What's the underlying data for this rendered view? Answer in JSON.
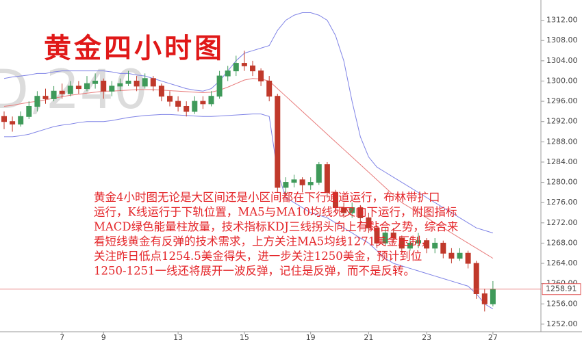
{
  "chart_data": {
    "type": "candlestick",
    "title": "黄金四小时图",
    "watermark": "D,240",
    "annotation": [
      "黄金4小时图无论是大区间还是小区间都在下行通道运行，布林带扩口",
      "运行，K线运行于下轨位置，MA5与MA10均线死叉向下运行，附图指标",
      "MACD绿色能量柱放量，技术指标KDJ三线拐头向上有黏合之势，综合来",
      "看短线黄金有反弹的技术需求，上方关注MA5均线1271美金压制，",
      "关注昨日低点1254.5美金得失，进一步关注1250美金，预计到位",
      "1250-1251一线还将展开一波反弹，记住是反弹，而不是反转。"
    ],
    "categories": [
      null,
      null,
      null,
      null,
      null,
      null,
      null,
      "7",
      null,
      null,
      null,
      null,
      "9",
      null,
      null,
      null,
      null,
      null,
      null,
      null,
      null,
      "13",
      null,
      null,
      null,
      null,
      null,
      null,
      null,
      "15",
      null,
      null,
      null,
      null,
      null,
      null,
      null,
      "19",
      null,
      null,
      null,
      null,
      null,
      null,
      "21",
      null,
      null,
      null,
      null,
      null,
      null,
      "23",
      null,
      null,
      null,
      null,
      null,
      null,
      null,
      "27"
    ],
    "open": [
      1293,
      1292,
      1291.5,
      1293,
      1295,
      1297,
      1296.5,
      1298,
      1297.5,
      1299,
      1298.5,
      1299.5,
      1300,
      1298,
      1299,
      1299.5,
      1300,
      1299,
      1300.5,
      1299,
      1297,
      1296,
      1295,
      1294,
      1296,
      1295.5,
      1297,
      1301,
      1302,
      1303.5,
      1303,
      1302,
      1300,
      1297,
      1279,
      1280,
      1280.5,
      1279.5,
      1280,
      1283.5,
      1278,
      1275,
      1274,
      1275,
      1273,
      1271,
      1268,
      1270,
      1269,
      1267,
      1268,
      1268.5,
      1267,
      1268,
      1266,
      1265,
      1266,
      1264,
      1258,
      1256
    ],
    "high": [
      1294,
      1293,
      1294,
      1296,
      1298,
      1298.5,
      1299,
      1299.5,
      1300,
      1300,
      1301,
      1301.5,
      1300.5,
      1300,
      1300.5,
      1302,
      1301,
      1301.5,
      1301,
      1299.5,
      1298,
      1297,
      1296,
      1297,
      1297,
      1298,
      1302,
      1303,
      1305,
      1306,
      1304,
      1302.5,
      1301,
      1297.5,
      1281,
      1281.5,
      1281,
      1281,
      1284,
      1284,
      1278.5,
      1276,
      1276,
      1275.5,
      1274,
      1271.5,
      1271,
      1271,
      1269.5,
      1269,
      1270,
      1269,
      1269,
      1268.5,
      1267,
      1267,
      1266.5,
      1264.5,
      1259,
      1260.5
    ],
    "low": [
      1290.5,
      1290,
      1291,
      1292.5,
      1294,
      1295.5,
      1296,
      1296.5,
      1297,
      1297.5,
      1298,
      1298.5,
      1296.5,
      1297,
      1298,
      1299,
      1298,
      1298.5,
      1298,
      1296,
      1295,
      1294,
      1293,
      1293.5,
      1294.5,
      1295,
      1296.5,
      1300,
      1301,
      1302,
      1301,
      1299,
      1296,
      1278,
      1277.5,
      1279,
      1278,
      1278.5,
      1279.5,
      1277,
      1274,
      1273,
      1273,
      1272,
      1270,
      1267,
      1267.5,
      1268,
      1266,
      1266.5,
      1267,
      1266,
      1266,
      1265,
      1264,
      1264.5,
      1263,
      1257,
      1254.5,
      1255.5
    ],
    "close": [
      1292,
      1291.5,
      1293,
      1295,
      1297,
      1296.5,
      1298,
      1297.5,
      1299,
      1298.5,
      1299.5,
      1300,
      1298,
      1299,
      1299.5,
      1300,
      1299,
      1300.5,
      1299,
      1297,
      1296,
      1295,
      1294,
      1296,
      1295.5,
      1297,
      1301,
      1302,
      1303.5,
      1303,
      1302,
      1300,
      1297,
      1279,
      1280,
      1280.5,
      1279.5,
      1280,
      1283.5,
      1278,
      1275,
      1274,
      1275,
      1273,
      1271,
      1268,
      1270,
      1269,
      1267,
      1268,
      1268.5,
      1267,
      1268,
      1266,
      1265,
      1266,
      1264,
      1258,
      1256,
      1258.91
    ],
    "up_color": "#3f9a5a",
    "down_color": "#c0392b",
    "bands": [
      {
        "color": "#7f83e6",
        "values": [
          1300.5,
          1300.8,
          1301,
          1301.2,
          1301.5,
          1301.5,
          1301.8,
          1302,
          1302,
          1302,
          1302,
          1302,
          1302,
          1301.8,
          1301.5,
          1301.5,
          1301.2,
          1301,
          1300.5,
          1300,
          1299.5,
          1299,
          1298.5,
          1298.2,
          1298,
          1298.5,
          1300,
          1302,
          1304,
          1305.5,
          1306,
          1306.5,
          1307,
          1310,
          1312,
          1313,
          1313.5,
          1313.5,
          1313,
          1312,
          1309,
          1304,
          1296,
          1289,
          1285,
          1283,
          1282,
          1281,
          1280,
          1279,
          1278,
          1277,
          1276,
          1275,
          1274,
          1273,
          1272,
          1271,
          1270.5,
          1270
        ]
      },
      {
        "color": "#7f83e6",
        "values": [
          1289,
          1289,
          1289.2,
          1289.5,
          1290,
          1290.5,
          1291,
          1291.3,
          1291.5,
          1291.8,
          1292,
          1292,
          1292,
          1292.2,
          1292.5,
          1292.8,
          1293,
          1293.2,
          1293.3,
          1293.4,
          1293.4,
          1293.3,
          1293.2,
          1293.1,
          1293,
          1293,
          1293.1,
          1293.2,
          1293.3,
          1293.4,
          1293.5,
          1293.5,
          1293,
          1282,
          1277,
          1276,
          1275,
          1274,
          1273.5,
          1273,
          1272,
          1271,
          1270,
          1269,
          1268,
          1266.5,
          1265,
          1264,
          1263.5,
          1263,
          1262.5,
          1262,
          1261.5,
          1261,
          1260.5,
          1260,
          1259.5,
          1258,
          1256,
          1255
        ]
      },
      {
        "color": "#e87a7a",
        "values": [
          1295,
          1295.2,
          1295.5,
          1295.8,
          1296,
          1296.3,
          1296.6,
          1296.9,
          1297.2,
          1297.4,
          1297.6,
          1297.8,
          1298,
          1298,
          1298.1,
          1298.2,
          1298.3,
          1298.3,
          1298.3,
          1298.2,
          1298.1,
          1298,
          1297.9,
          1297.8,
          1297.7,
          1297.8,
          1298.2,
          1298.8,
          1299.5,
          1300.2,
          1300.5,
          1300.4,
          1300,
          1298.5,
          1297,
          1295.5,
          1294,
          1292.5,
          1291,
          1289.5,
          1288,
          1286.5,
          1285,
          1283.5,
          1282,
          1280.5,
          1279,
          1277.5,
          1276,
          1275,
          1274,
          1273,
          1272,
          1271,
          1270,
          1269,
          1268,
          1267,
          1266,
          1265
        ]
      }
    ],
    "last_price": {
      "value": 1258.91,
      "color": "#e05a5a"
    },
    "ylim": [
      1250.5,
      1316
    ],
    "yticks": [
      {
        "value": 1252,
        "label": "1252.00"
      },
      {
        "value": 1256,
        "label": "1256.00"
      },
      {
        "value": 1260,
        "label": "1260.00"
      },
      {
        "value": 1264,
        "label": "1264.00"
      },
      {
        "value": 1268,
        "label": "1268.00"
      },
      {
        "value": 1272,
        "label": "1272.00"
      },
      {
        "value": 1276,
        "label": "1276.00"
      },
      {
        "value": 1280,
        "label": "1280.00"
      },
      {
        "value": 1284,
        "label": "1284.00"
      },
      {
        "value": 1288,
        "label": "1288.00"
      },
      {
        "value": 1292,
        "label": "1292.00"
      },
      {
        "value": 1296,
        "label": "1296.00"
      },
      {
        "value": 1300,
        "label": "1300.00"
      },
      {
        "value": 1304,
        "label": "1304.00"
      },
      {
        "value": 1308,
        "label": "1308.00"
      },
      {
        "value": 1312,
        "label": "1312.00"
      }
    ],
    "grid": false
  }
}
